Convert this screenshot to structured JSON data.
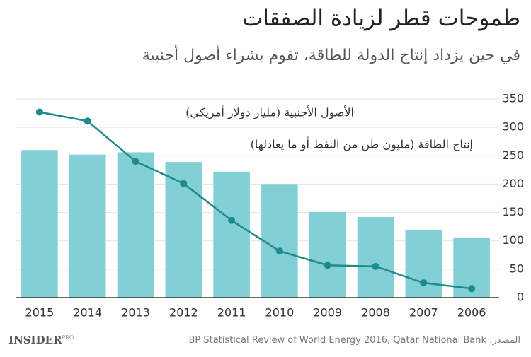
{
  "title": "طموحات قطر لزيادة الصفقات",
  "subtitle": "في حين يزداد إنتاج الدولة للطاقة، تقوم بشراء أصول أجنبية",
  "source": "المصدر: BP Statistical Review of World Energy 2016, Qatar National Bank",
  "logo": {
    "name": "INSIDER",
    "tag": "PRO"
  },
  "chart_data": {
    "type": "bar-line",
    "categories": [
      "2015",
      "2014",
      "2013",
      "2012",
      "2011",
      "2010",
      "2009",
      "2008",
      "2007",
      "2006"
    ],
    "series": [
      {
        "name": "إنتاج الطاقة (مليون طن من النفط أو ما يعادلها)",
        "type": "bar",
        "color": "#82cfd6",
        "values": [
          260,
          252,
          256,
          239,
          222,
          200,
          151,
          142,
          119,
          106
        ]
      },
      {
        "name": "الأصول الأجنبية (مليار دولار أمريكي)",
        "type": "line",
        "color": "#1e8a8c",
        "values": [
          327,
          311,
          240,
          201,
          136,
          82,
          57,
          55,
          26,
          16
        ]
      }
    ],
    "ylim": [
      0,
      350
    ],
    "yticks": [
      0,
      50,
      100,
      150,
      200,
      250,
      300,
      350
    ],
    "grid": true
  }
}
